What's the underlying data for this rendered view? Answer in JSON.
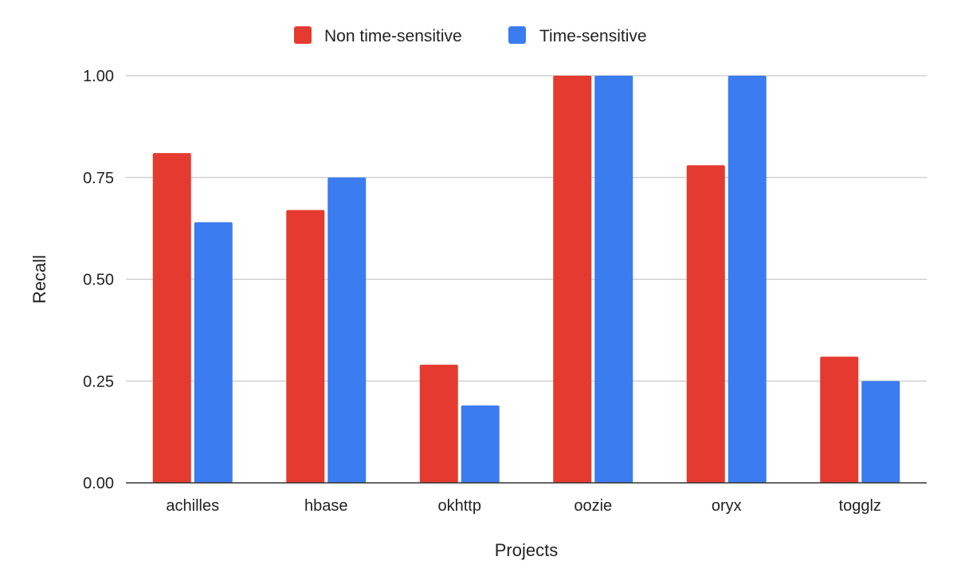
{
  "chart_data": {
    "type": "bar",
    "title": "",
    "xlabel": "Projects",
    "ylabel": "Recall",
    "categories": [
      "achilles",
      "hbase",
      "okhttp",
      "oozie",
      "oryx",
      "togglz"
    ],
    "series": [
      {
        "name": "Non time-sensitive",
        "color": "#e53a2f",
        "values": [
          0.81,
          0.67,
          0.29,
          1.0,
          0.78,
          0.31
        ]
      },
      {
        "name": "Time-sensitive",
        "color": "#3b7cf0",
        "values": [
          0.64,
          0.75,
          0.19,
          1.0,
          1.0,
          0.25
        ]
      }
    ],
    "ylim": [
      0,
      1
    ],
    "yticks": [
      "0.00",
      "0.25",
      "0.50",
      "0.75",
      "1.00"
    ],
    "grid": true,
    "legend_position": "top-center"
  }
}
